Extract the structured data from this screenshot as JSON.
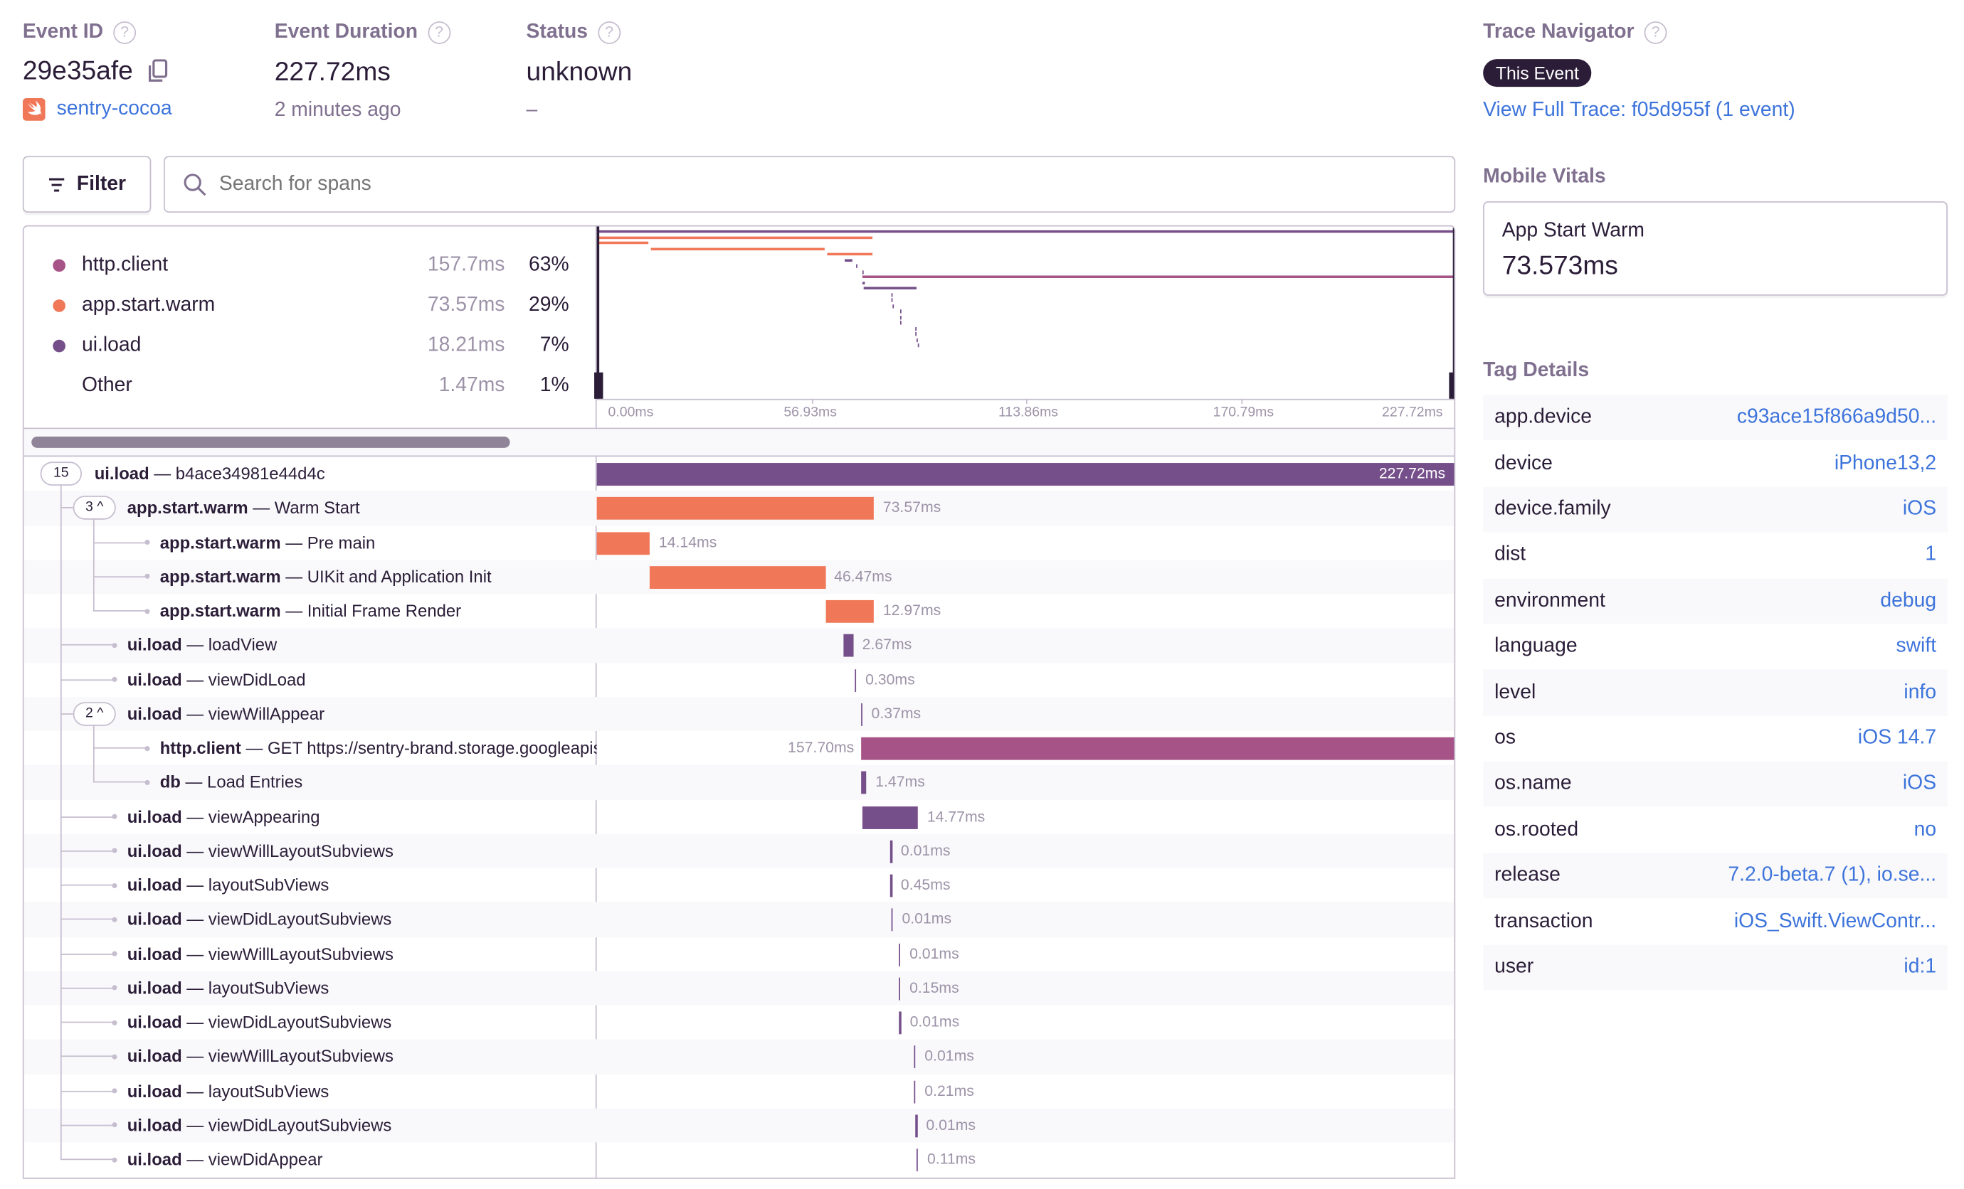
{
  "header": {
    "event_id": {
      "label": "Event ID",
      "value": "29e35afe",
      "project": "sentry-cocoa"
    },
    "duration": {
      "label": "Event Duration",
      "value": "227.72ms",
      "time_ago": "2 minutes ago"
    },
    "status": {
      "label": "Status",
      "value": "unknown",
      "sub": "–"
    }
  },
  "toolbar": {
    "filter_label": "Filter",
    "search_placeholder": "Search for spans"
  },
  "breakdown": [
    {
      "op": "http.client",
      "duration": "157.7ms",
      "percent": "63%",
      "color": "#a65387"
    },
    {
      "op": "app.start.warm",
      "duration": "73.57ms",
      "percent": "29%",
      "color": "#f07858"
    },
    {
      "op": "ui.load",
      "duration": "18.21ms",
      "percent": "7%",
      "color": "#754f8a"
    },
    {
      "op": "Other",
      "duration": "1.47ms",
      "percent": "1%",
      "color": ""
    }
  ],
  "chart_data": {
    "type": "bar",
    "xlim": [
      0,
      227.72
    ],
    "xticks": [
      "0.00ms",
      "56.93ms",
      "113.86ms",
      "170.79ms",
      "227.72ms"
    ],
    "colors": {
      "ui.load": "#754f8a",
      "app.start.warm": "#f07858",
      "http.client": "#a65387",
      "db": "#754f8a"
    },
    "spans": [
      {
        "op": "ui.load",
        "description": "b4ace34981e44d4c",
        "label": "227.72ms",
        "start_ms": 0,
        "duration_ms": 227.72,
        "depth": 0,
        "children": "15"
      },
      {
        "op": "app.start.warm",
        "description": "Warm Start",
        "label": "73.57ms",
        "start_ms": 0,
        "duration_ms": 73.57,
        "depth": 1,
        "children": "3"
      },
      {
        "op": "app.start.warm",
        "description": "Pre main",
        "label": "14.14ms",
        "start_ms": 0,
        "duration_ms": 14.14,
        "depth": 2
      },
      {
        "op": "app.start.warm",
        "description": "UIKit and Application Init",
        "label": "46.47ms",
        "start_ms": 14.14,
        "duration_ms": 46.47,
        "depth": 2
      },
      {
        "op": "app.start.warm",
        "description": "Initial Frame Render",
        "label": "12.97ms",
        "start_ms": 60.61,
        "duration_ms": 12.97,
        "depth": 2
      },
      {
        "op": "ui.load",
        "description": "loadView",
        "label": "2.67ms",
        "start_ms": 65.4,
        "duration_ms": 2.67,
        "depth": 1
      },
      {
        "op": "ui.load",
        "description": "viewDidLoad",
        "label": "0.30ms",
        "start_ms": 68.4,
        "duration_ms": 0.3,
        "depth": 1
      },
      {
        "op": "ui.load",
        "description": "viewWillAppear",
        "label": "0.37ms",
        "start_ms": 70.0,
        "duration_ms": 0.37,
        "depth": 1,
        "children": "2"
      },
      {
        "op": "http.client",
        "description": "GET https://sentry-brand.storage.googleapis.com",
        "label": "157.70ms",
        "start_ms": 70.02,
        "duration_ms": 157.7,
        "depth": 2
      },
      {
        "op": "db",
        "description": "Load Entries",
        "label": "1.47ms",
        "start_ms": 70.1,
        "duration_ms": 1.47,
        "depth": 2
      },
      {
        "op": "ui.load",
        "description": "viewAppearing",
        "label": "14.77ms",
        "start_ms": 70.5,
        "duration_ms": 14.77,
        "depth": 1
      },
      {
        "op": "ui.load",
        "description": "viewWillLayoutSubviews",
        "label": "0.01ms",
        "start_ms": 77.8,
        "duration_ms": 0.01,
        "depth": 1
      },
      {
        "op": "ui.load",
        "description": "layoutSubViews",
        "label": "0.45ms",
        "start_ms": 77.8,
        "duration_ms": 0.45,
        "depth": 1
      },
      {
        "op": "ui.load",
        "description": "viewDidLayoutSubviews",
        "label": "0.01ms",
        "start_ms": 78.1,
        "duration_ms": 0.01,
        "depth": 1
      },
      {
        "op": "ui.load",
        "description": "viewWillLayoutSubviews",
        "label": "0.01ms",
        "start_ms": 80.1,
        "duration_ms": 0.01,
        "depth": 1
      },
      {
        "op": "ui.load",
        "description": "layoutSubViews",
        "label": "0.15ms",
        "start_ms": 80.1,
        "duration_ms": 0.15,
        "depth": 1
      },
      {
        "op": "ui.load",
        "description": "viewDidLayoutSubviews",
        "label": "0.01ms",
        "start_ms": 80.2,
        "duration_ms": 0.01,
        "depth": 1
      },
      {
        "op": "ui.load",
        "description": "viewWillLayoutSubviews",
        "label": "0.01ms",
        "start_ms": 84.1,
        "duration_ms": 0.01,
        "depth": 1
      },
      {
        "op": "ui.load",
        "description": "layoutSubViews",
        "label": "0.21ms",
        "start_ms": 84.1,
        "duration_ms": 0.21,
        "depth": 1
      },
      {
        "op": "ui.load",
        "description": "viewDidLayoutSubviews",
        "label": "0.01ms",
        "start_ms": 84.5,
        "duration_ms": 0.01,
        "depth": 1
      },
      {
        "op": "ui.load",
        "description": "viewDidAppear",
        "label": "0.11ms",
        "start_ms": 84.8,
        "duration_ms": 0.11,
        "depth": 1
      }
    ]
  },
  "sidebar": {
    "trace_navigator": {
      "title": "Trace Navigator",
      "this_event": "This Event",
      "full_trace_link": "View Full Trace: f05d955f (1 event)"
    },
    "mobile_vitals": {
      "title": "Mobile Vitals",
      "card_label": "App Start Warm",
      "card_value": "73.573ms"
    },
    "tag_details": {
      "title": "Tag Details",
      "tags": [
        {
          "key": "app.device",
          "value": "c93ace15f866a9d50..."
        },
        {
          "key": "device",
          "value": "iPhone13,2"
        },
        {
          "key": "device.family",
          "value": "iOS"
        },
        {
          "key": "dist",
          "value": "1"
        },
        {
          "key": "environment",
          "value": "debug"
        },
        {
          "key": "language",
          "value": "swift"
        },
        {
          "key": "level",
          "value": "info"
        },
        {
          "key": "os",
          "value": "iOS 14.7"
        },
        {
          "key": "os.name",
          "value": "iOS"
        },
        {
          "key": "os.rooted",
          "value": "no"
        },
        {
          "key": "release",
          "value": "7.2.0-beta.7 (1), io.se..."
        },
        {
          "key": "transaction",
          "value": "iOS_Swift.ViewContr..."
        },
        {
          "key": "user",
          "value": "id:1"
        }
      ]
    }
  }
}
